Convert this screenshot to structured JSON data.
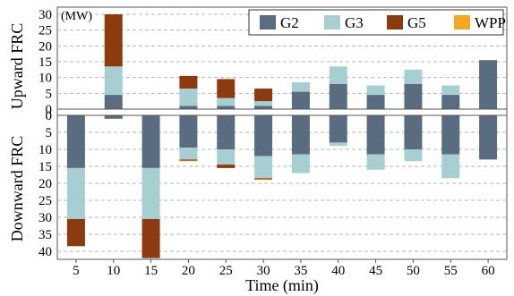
{
  "chart_data": {
    "type": "bar",
    "stacked": true,
    "diverging": true,
    "unit": "(MW)",
    "xlabel": "Time (min)",
    "ylabel_upper": "Upward FRC",
    "ylabel_lower": "Downward FRC",
    "categories": [
      "5",
      "10",
      "15",
      "20",
      "25",
      "30",
      "35",
      "40",
      "45",
      "50",
      "55",
      "60"
    ],
    "upward_ylim": [
      0,
      30
    ],
    "upward_ticks": [
      "0",
      "5",
      "10",
      "15",
      "20",
      "25",
      "30"
    ],
    "downward_ylim": [
      0,
      40
    ],
    "downward_ticks": [
      "0",
      "5",
      "10",
      "15",
      "20",
      "25",
      "30",
      "35",
      "40"
    ],
    "grid": true,
    "legend_position": "top-right",
    "colors": {
      "G2": "#5a6c7f",
      "G3": "#a7cfd2",
      "G5": "#8c3a10",
      "WPP": "#f5a623"
    },
    "upward_series": [
      {
        "name": "G2",
        "values": [
          0,
          4.5,
          0,
          1,
          1,
          1,
          5.5,
          8,
          4.5,
          8,
          4.5,
          15.5
        ]
      },
      {
        "name": "G3",
        "values": [
          0,
          9,
          0,
          5.5,
          2.5,
          1.5,
          3,
          5.5,
          3,
          4.5,
          3,
          0
        ]
      },
      {
        "name": "G5",
        "values": [
          0,
          16.5,
          0,
          4,
          6,
          4,
          0,
          0,
          0,
          0,
          0,
          0
        ]
      },
      {
        "name": "WPP",
        "values": [
          0,
          0,
          0,
          0,
          0,
          0,
          0,
          0,
          0,
          0,
          0,
          0
        ]
      }
    ],
    "downward_series": [
      {
        "name": "G2",
        "values": [
          15.5,
          1,
          15.5,
          9.5,
          10,
          12,
          11.5,
          8,
          11.5,
          10,
          11.5,
          13
        ]
      },
      {
        "name": "G3",
        "values": [
          15,
          0,
          15,
          3.5,
          4.5,
          6.5,
          5.5,
          1,
          4.5,
          3.5,
          7,
          0
        ]
      },
      {
        "name": "G5",
        "values": [
          8,
          0,
          11.5,
          0.3,
          1,
          0.3,
          0,
          0,
          0,
          0,
          0,
          0
        ]
      },
      {
        "name": "WPP",
        "values": [
          0,
          0,
          0,
          0.2,
          0,
          0.2,
          0,
          0,
          0,
          0,
          0,
          0
        ]
      }
    ]
  }
}
